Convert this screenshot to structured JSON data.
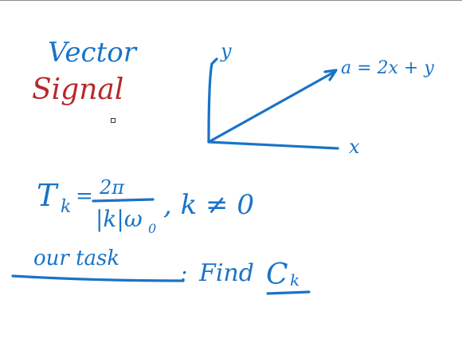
{
  "canvas": {
    "background": "#ffffff",
    "ink_blue": "#1a73c7",
    "ink_red": "#b8282a"
  },
  "notes": {
    "title_word1": "Vector",
    "title_word2": "Signal",
    "axis_y_label": "y",
    "axis_x_label": "x",
    "vector_label": "a = 2x + y",
    "formula_lhs": "T",
    "formula_lhs_sub": "k",
    "formula_eq": "=",
    "formula_num": "2π",
    "formula_den": "|k|ω",
    "formula_den_sub": "0",
    "formula_cond": ", k ≠ 0",
    "task_text": "our task",
    "task_colon": ":",
    "task_find": "Find",
    "task_target": "C",
    "task_target_sub": "k"
  }
}
